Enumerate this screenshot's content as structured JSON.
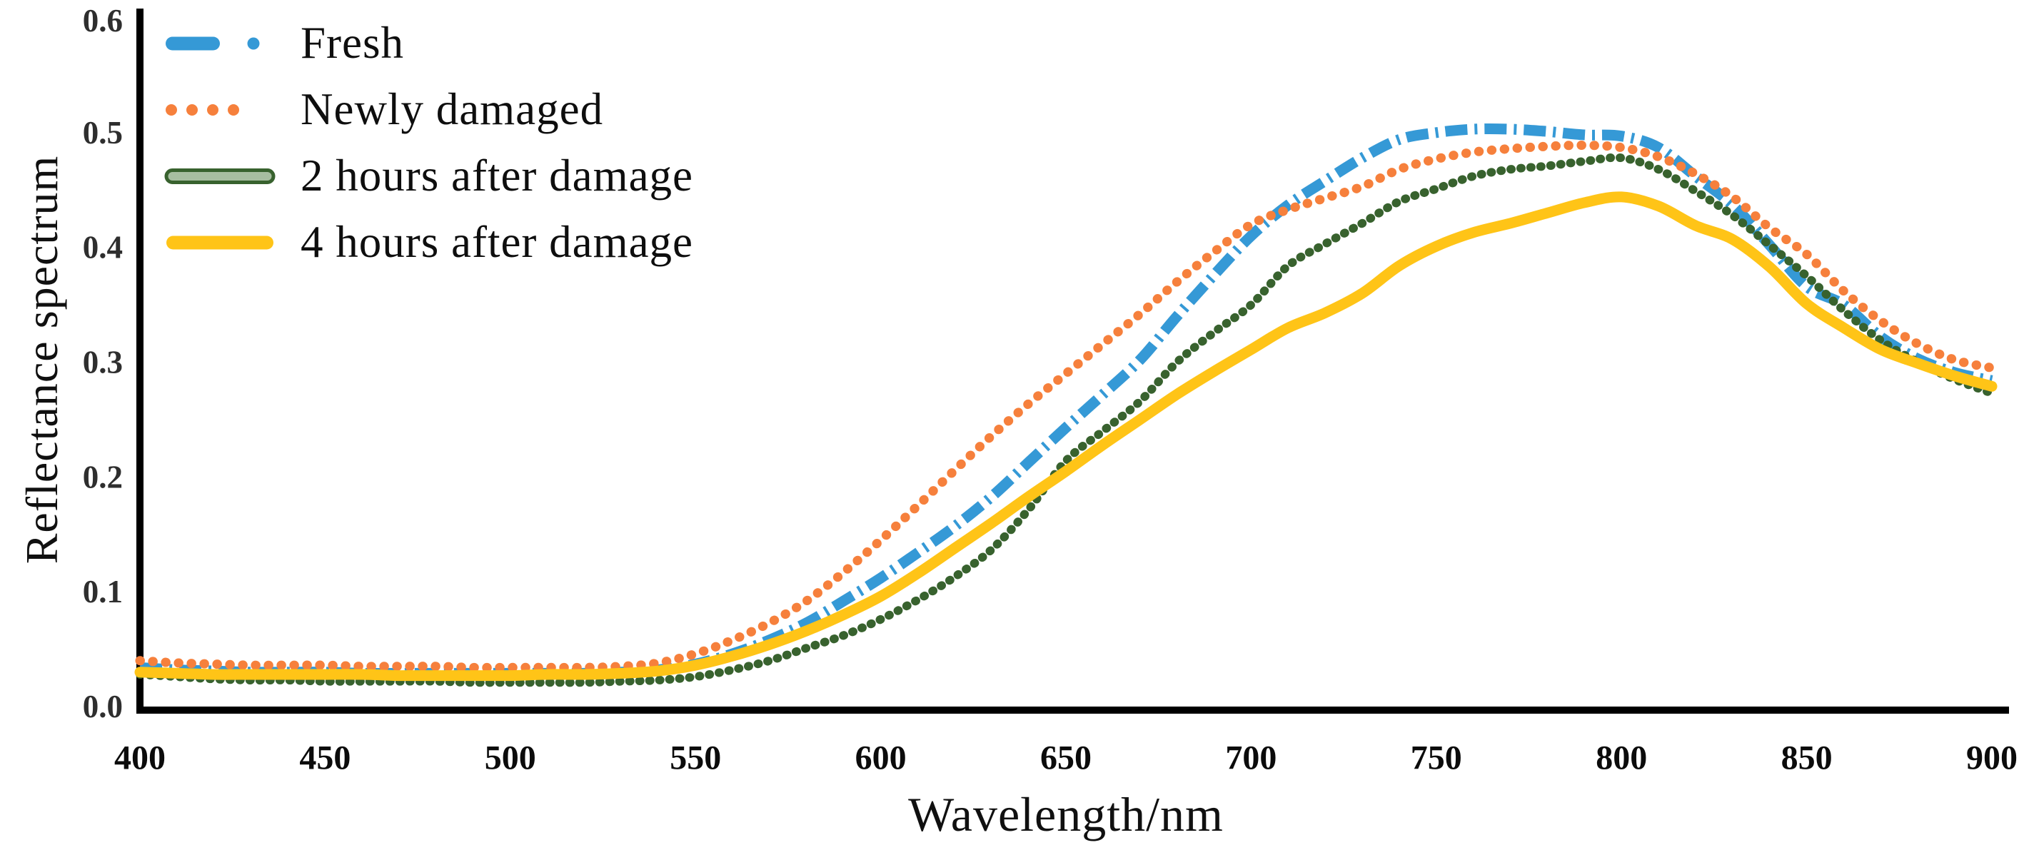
{
  "figure": {
    "background": "#ffffff"
  },
  "chart_data": {
    "type": "line",
    "title": "",
    "xlabel": "Wavelength/nm",
    "ylabel": "Reflectance spectrum",
    "xlim": [
      400,
      900
    ],
    "ylim": [
      0,
      0.6
    ],
    "grid": false,
    "legend_position": "top-left-inside",
    "axis_color": "#000000",
    "x_ticks": [
      "400",
      "450",
      "500",
      "550",
      "600",
      "650",
      "700",
      "750",
      "800",
      "850",
      "900"
    ],
    "x_tick_values": [
      400,
      450,
      500,
      550,
      600,
      650,
      700,
      750,
      800,
      850,
      900
    ],
    "y_ticks": [
      "0.0",
      "0.1",
      "0.2",
      "0.3",
      "0.4",
      "0.5",
      "0.6"
    ],
    "y_tick_values": [
      0,
      0.1,
      0.2,
      0.3,
      0.4,
      0.5,
      0.6
    ],
    "x": [
      400,
      410,
      420,
      430,
      440,
      450,
      460,
      470,
      480,
      490,
      500,
      510,
      520,
      530,
      540,
      550,
      560,
      570,
      580,
      590,
      600,
      610,
      620,
      630,
      640,
      650,
      660,
      670,
      680,
      690,
      700,
      710,
      720,
      730,
      740,
      750,
      760,
      770,
      780,
      790,
      800,
      810,
      820,
      830,
      840,
      850,
      860,
      870,
      880,
      890,
      900
    ],
    "series": [
      {
        "name": "Fresh",
        "slug": "fresh",
        "color": "#3599D6",
        "style": "dash-dot",
        "line_width": 15,
        "values": [
          0.034,
          0.032,
          0.031,
          0.03,
          0.03,
          0.03,
          0.029,
          0.029,
          0.029,
          0.029,
          0.029,
          0.029,
          0.029,
          0.03,
          0.032,
          0.037,
          0.046,
          0.058,
          0.073,
          0.092,
          0.112,
          0.134,
          0.157,
          0.183,
          0.213,
          0.243,
          0.272,
          0.302,
          0.34,
          0.376,
          0.41,
          0.437,
          0.458,
          0.478,
          0.494,
          0.5,
          0.503,
          0.503,
          0.501,
          0.498,
          0.497,
          0.487,
          0.462,
          0.437,
          0.402,
          0.366,
          0.35,
          0.322,
          0.303,
          0.291,
          0.284
        ]
      },
      {
        "name": "Newly damaged",
        "slug": "newly-damaged",
        "color": "#F6803C",
        "style": "dotted",
        "line_width": 13,
        "values": [
          0.04,
          0.038,
          0.037,
          0.036,
          0.036,
          0.036,
          0.035,
          0.035,
          0.035,
          0.034,
          0.034,
          0.034,
          0.034,
          0.035,
          0.038,
          0.046,
          0.058,
          0.073,
          0.092,
          0.117,
          0.145,
          0.175,
          0.206,
          0.236,
          0.264,
          0.29,
          0.316,
          0.342,
          0.37,
          0.396,
          0.42,
          0.433,
          0.443,
          0.453,
          0.468,
          0.477,
          0.483,
          0.486,
          0.488,
          0.489,
          0.487,
          0.479,
          0.464,
          0.444,
          0.417,
          0.394,
          0.362,
          0.336,
          0.316,
          0.302,
          0.295
        ]
      },
      {
        "name": "2 hours after damage",
        "slug": "2-hours-after-damage",
        "color": "#38622E",
        "style": "beaded",
        "line_width": 12,
        "swatch_fill": "#A7BEA1",
        "values": [
          0.028,
          0.026,
          0.024,
          0.023,
          0.023,
          0.022,
          0.022,
          0.022,
          0.022,
          0.021,
          0.021,
          0.021,
          0.021,
          0.022,
          0.023,
          0.026,
          0.032,
          0.04,
          0.051,
          0.062,
          0.076,
          0.093,
          0.113,
          0.137,
          0.172,
          0.214,
          0.24,
          0.266,
          0.3,
          0.326,
          0.35,
          0.384,
          0.403,
          0.421,
          0.44,
          0.451,
          0.462,
          0.468,
          0.471,
          0.475,
          0.478,
          0.468,
          0.449,
          0.428,
          0.402,
          0.375,
          0.345,
          0.319,
          0.3,
          0.285,
          0.273
        ]
      },
      {
        "name": "4 hours after damage",
        "slug": "4-hours-after-damage",
        "color": "#FFC417",
        "style": "solid",
        "line_width": 15,
        "values": [
          0.03,
          0.029,
          0.028,
          0.028,
          0.028,
          0.028,
          0.028,
          0.027,
          0.027,
          0.027,
          0.027,
          0.028,
          0.028,
          0.029,
          0.031,
          0.036,
          0.044,
          0.054,
          0.066,
          0.08,
          0.096,
          0.116,
          0.138,
          0.16,
          0.183,
          0.205,
          0.228,
          0.25,
          0.272,
          0.292,
          0.311,
          0.33,
          0.343,
          0.36,
          0.384,
          0.401,
          0.413,
          0.421,
          0.43,
          0.439,
          0.444,
          0.436,
          0.419,
          0.407,
          0.383,
          0.351,
          0.33,
          0.311,
          0.299,
          0.288,
          0.279
        ]
      }
    ]
  }
}
